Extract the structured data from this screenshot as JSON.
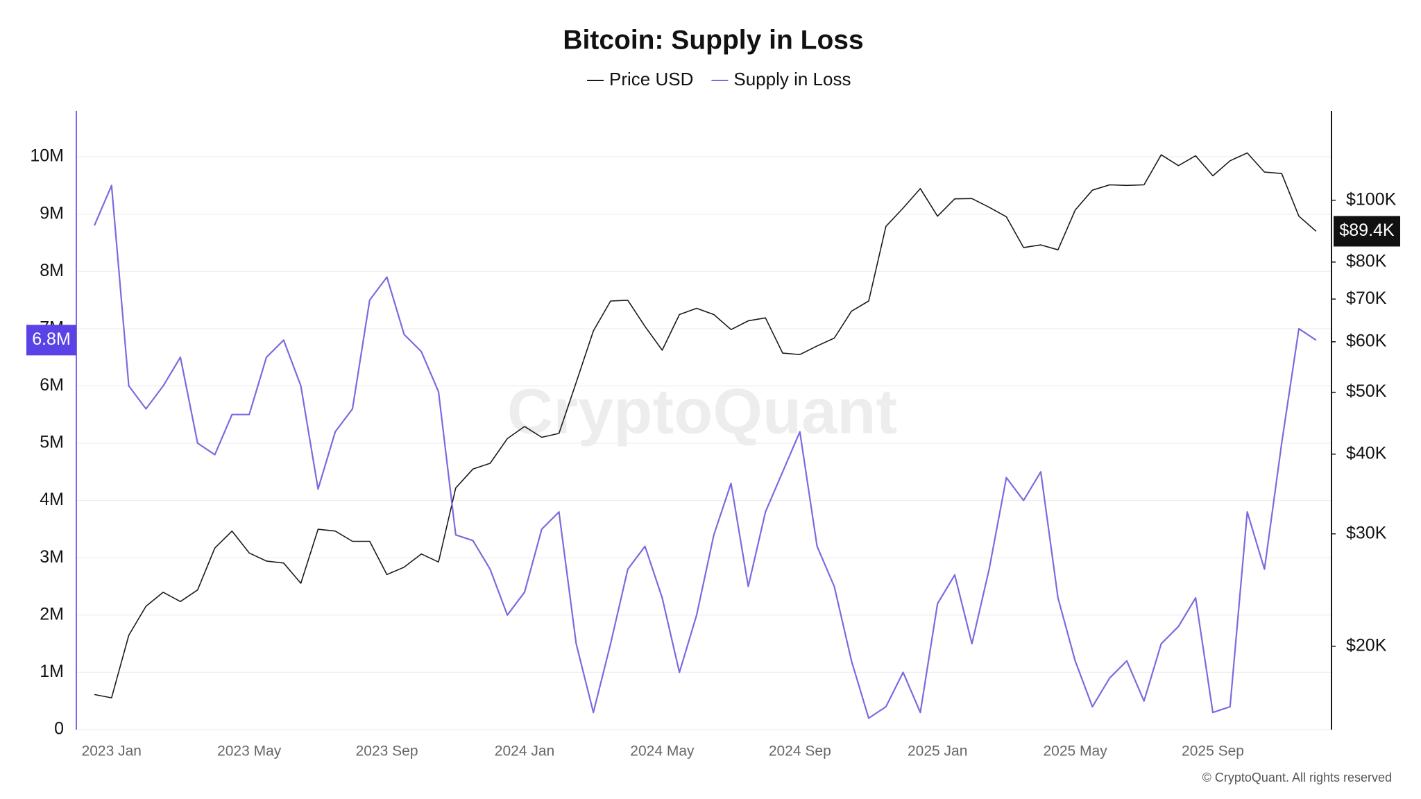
{
  "chart_data": {
    "type": "line",
    "title": "Bitcoin: Supply in Loss",
    "watermark": "CryptoQuant",
    "footer": "© CryptoQuant. All rights reserved",
    "legend": "top",
    "categories": [
      null,
      "2023 Jan",
      null,
      null,
      null,
      null,
      null,
      null,
      null,
      "2023 May",
      null,
      null,
      null,
      null,
      null,
      null,
      null,
      "2023 Sep",
      null,
      null,
      null,
      null,
      null,
      null,
      null,
      "2024 Jan",
      null,
      null,
      null,
      null,
      null,
      null,
      null,
      "2024 May",
      null,
      null,
      null,
      null,
      null,
      null,
      null,
      "2024 Sep",
      null,
      null,
      null,
      null,
      null,
      null,
      null,
      "2025 Jan",
      null,
      null,
      null,
      null,
      null,
      null,
      null,
      "2025 May",
      null,
      null,
      null,
      null,
      null,
      null,
      null,
      "2025 Sep",
      null,
      null,
      null,
      null,
      null,
      null
    ],
    "series": [
      {
        "name": "Price USD",
        "color": "#1a1a1a",
        "axis": "y2",
        "values": [
          16800,
          16600,
          20800,
          23100,
          24300,
          23500,
          24500,
          28500,
          30300,
          28000,
          27200,
          27000,
          25100,
          30500,
          30300,
          29200,
          29200,
          25900,
          26600,
          27900,
          27100,
          35400,
          37900,
          38700,
          42300,
          44200,
          42500,
          43100,
          51800,
          62400,
          69500,
          69700,
          63400,
          58200,
          66200,
          67700,
          66200,
          62700,
          64700,
          65400,
          57600,
          57300,
          59100,
          60800,
          67000,
          69500,
          91000,
          97200,
          104300,
          94400,
          100500,
          100600,
          97500,
          94200,
          84300,
          85100,
          83600,
          96500,
          103700,
          105700,
          105500,
          105700,
          117800,
          113300,
          117400,
          109200,
          115300,
          118600,
          110700,
          110100,
          94400,
          89400
        ],
        "value_labels": [
          null,
          null,
          null,
          null,
          null,
          null,
          null,
          null,
          null,
          null,
          null,
          null,
          null,
          null,
          null,
          null,
          null,
          null,
          null,
          null,
          null,
          null,
          null,
          null,
          null,
          null,
          null,
          null,
          null,
          null,
          null,
          null,
          null,
          null,
          null,
          null,
          null,
          null,
          null,
          null,
          null,
          null,
          null,
          null,
          null,
          null,
          null,
          null,
          null,
          null,
          null,
          null,
          null,
          null,
          null,
          null,
          null,
          null,
          null,
          null,
          null,
          null,
          null,
          null,
          null,
          null,
          null,
          null,
          null,
          null,
          null,
          "$89.4K"
        ]
      },
      {
        "name": "Supply in Loss",
        "color": "#7b6ae0",
        "axis": "y",
        "values": [
          8800000,
          9500000,
          6000000,
          5600000,
          6000000,
          6500000,
          5000000,
          4800000,
          5500000,
          5500000,
          6500000,
          6800000,
          6000000,
          4200000,
          5200000,
          5600000,
          7500000,
          7900000,
          6900000,
          6600000,
          5900000,
          3400000,
          3300000,
          2800000,
          2000000,
          2400000,
          3500000,
          3800000,
          1500000,
          300000,
          1500000,
          2800000,
          3200000,
          2300000,
          1000000,
          2000000,
          3400000,
          4300000,
          2500000,
          3800000,
          4500000,
          5200000,
          3200000,
          2500000,
          1200000,
          200000,
          400000,
          1000000,
          300000,
          2200000,
          2700000,
          1500000,
          2800000,
          4400000,
          4000000,
          4500000,
          2300000,
          1200000,
          400000,
          900000,
          1200000,
          500000,
          1500000,
          1800000,
          2300000,
          300000,
          400000,
          3800000,
          2800000,
          5000000,
          7000000,
          6800000
        ],
        "value_labels": [
          null,
          null,
          null,
          null,
          null,
          null,
          null,
          null,
          null,
          null,
          null,
          null,
          null,
          null,
          null,
          null,
          null,
          null,
          null,
          null,
          null,
          null,
          null,
          null,
          null,
          null,
          null,
          null,
          null,
          null,
          null,
          null,
          null,
          null,
          null,
          null,
          null,
          null,
          null,
          null,
          null,
          null,
          null,
          null,
          null,
          null,
          null,
          null,
          null,
          null,
          null,
          null,
          null,
          null,
          null,
          null,
          null,
          null,
          null,
          null,
          null,
          null,
          null,
          null,
          null,
          null,
          null,
          null,
          null,
          null,
          null,
          "6.8M"
        ]
      }
    ],
    "ylim": [
      0,
      10800000
    ],
    "yticks": [
      0,
      {
        "value": 1000000,
        "label": "1M"
      },
      {
        "value": 2000000,
        "label": "2M"
      },
      {
        "value": 3000000,
        "label": "3M"
      },
      {
        "value": 4000000,
        "label": "4M"
      },
      {
        "value": 5000000,
        "label": "5M"
      },
      {
        "value": 6000000,
        "label": "6M"
      },
      {
        "value": 7000000,
        "label": "7M"
      },
      {
        "value": 8000000,
        "label": "8M"
      },
      {
        "value": 9000000,
        "label": "9M"
      },
      {
        "value": 10000000,
        "label": "10M"
      }
    ],
    "y2lim": [
      14800,
      138000
    ],
    "y2_log": true,
    "y2ticks": [
      {
        "value": 20000,
        "label": "$20K"
      },
      {
        "value": 30000,
        "label": "$30K"
      },
      {
        "value": 40000,
        "label": "$40K"
      },
      {
        "value": 50000,
        "label": "$50K"
      },
      {
        "value": 60000,
        "label": "$60K"
      },
      {
        "value": 70000,
        "label": "$70K"
      },
      {
        "value": 80000,
        "label": "$80K"
      },
      {
        "value": 100000,
        "label": "$100K"
      }
    ],
    "grid": true
  }
}
